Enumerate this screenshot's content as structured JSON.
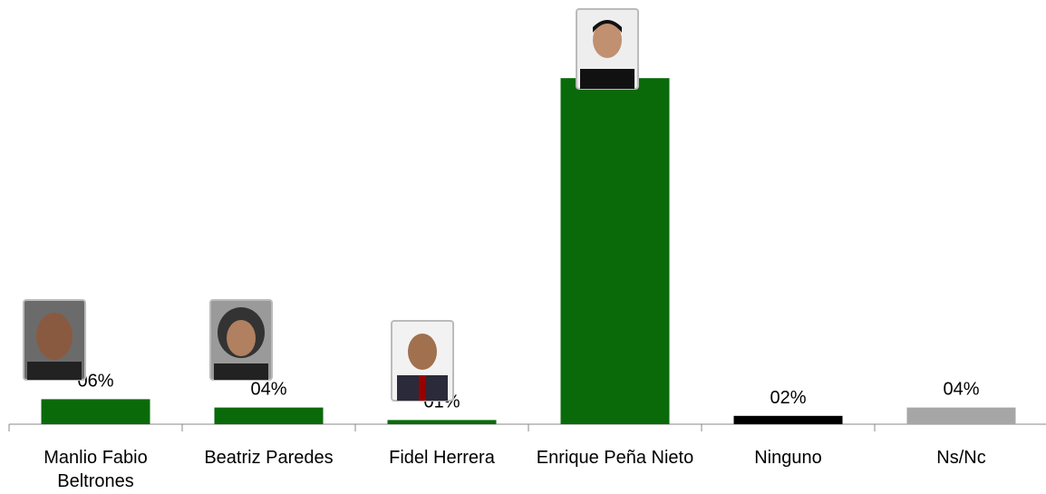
{
  "chart_data": {
    "type": "bar",
    "categories": [
      "Manlio Fabio Beltrones",
      "Beatriz Paredes",
      "Fidel Herrera",
      "Enrique Peña Nieto",
      "Ninguno",
      "Ns/Nc"
    ],
    "values": [
      6,
      4,
      1,
      83,
      2,
      4
    ],
    "value_labels": [
      "06%",
      "04%",
      "01%",
      null,
      "02%",
      "04%"
    ],
    "colors": [
      "#0a6a0a",
      "#0a6a0a",
      "#0a6a0a",
      "#0a6a0a",
      "#000000",
      "#a6a6a6"
    ],
    "ylim": [
      0,
      90
    ]
  }
}
